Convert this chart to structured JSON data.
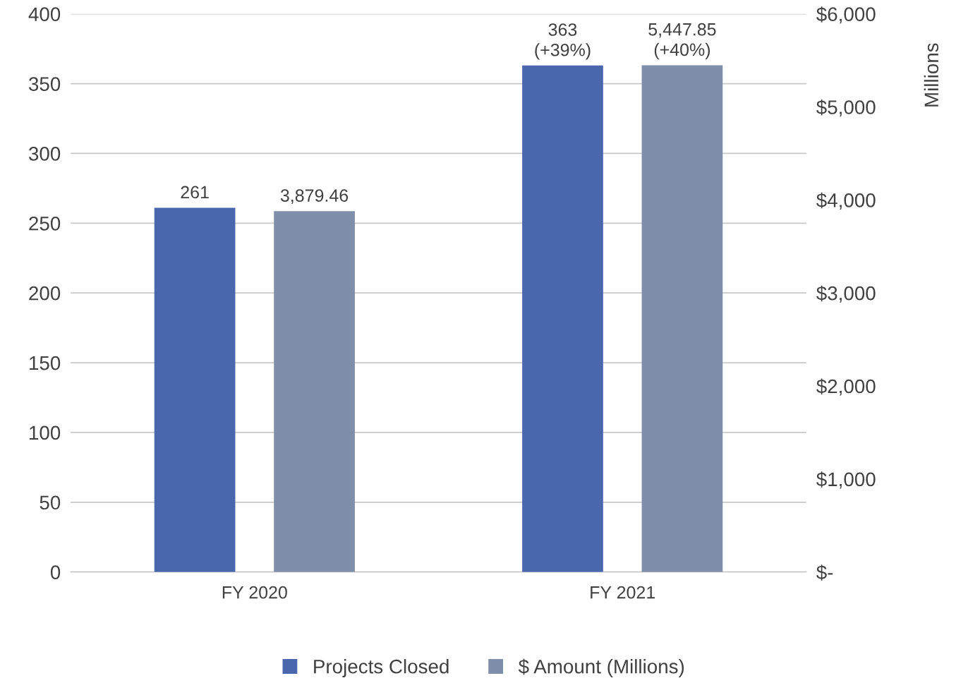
{
  "chart_data": {
    "type": "bar",
    "categories": [
      "FY 2020",
      "FY 2021"
    ],
    "series": [
      {
        "name": "Projects Closed",
        "color": "#4a66ac",
        "values": [
          261,
          363
        ],
        "value_labels": [
          "261",
          "363\n(+39%)"
        ]
      },
      {
        "name": "$ Amount (Millions)",
        "color": "#7f8fa9",
        "values": [
          3879.46,
          5447.85
        ],
        "axis": "y2",
        "value_labels": [
          "3,879.46",
          "5,447.85\n(+40%)"
        ]
      }
    ],
    "ylim": [
      0,
      400
    ],
    "yticks": [
      0,
      50,
      100,
      150,
      200,
      250,
      300,
      350,
      400
    ],
    "y2lim": [
      0,
      6000
    ],
    "y2ticks": [
      {
        "value": 0,
        "label": "$-"
      },
      {
        "value": 1000,
        "label": "$1,000"
      },
      {
        "value": 2000,
        "label": "$2,000"
      },
      {
        "value": 3000,
        "label": "$3,000"
      },
      {
        "value": 4000,
        "label": "$4,000"
      },
      {
        "value": 5000,
        "label": "$5,000"
      },
      {
        "value": 6000,
        "label": "$6,000"
      }
    ],
    "y2label": "Millions",
    "grid": "y",
    "legend": "bottom"
  }
}
